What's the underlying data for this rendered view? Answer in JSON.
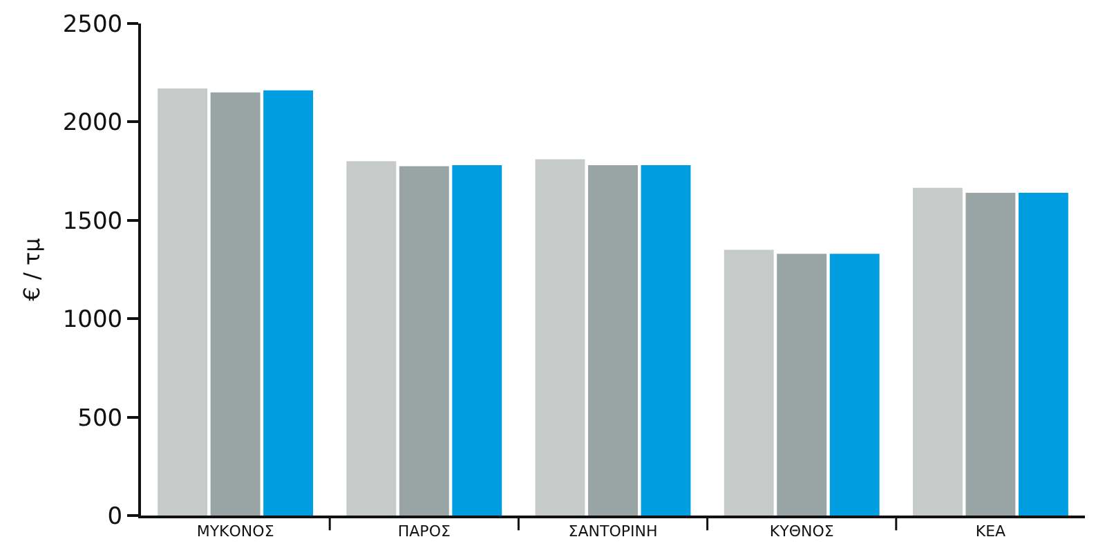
{
  "chart_data": {
    "type": "bar",
    "ylabel": "€ / τμ",
    "categories": [
      "ΜΥΚΟΝΟΣ",
      "ΠΑΡΟΣ",
      "ΣΑΝΤΟΡΙΝΗ",
      "ΚΥΘΝΟΣ",
      "ΚΕΑ"
    ],
    "series": [
      {
        "color": "#c6cbc9",
        "values": [
          2170,
          1800,
          1810,
          1350,
          1665
        ]
      },
      {
        "color": "#98a5a4",
        "values": [
          2150,
          1775,
          1780,
          1330,
          1640
        ]
      },
      {
        "color": "#009ee0",
        "values": [
          2160,
          1780,
          1780,
          1330,
          1640
        ]
      }
    ],
    "ylim": [
      0,
      2500
    ],
    "yticks": [
      0,
      500,
      1000,
      1500,
      2000,
      2500
    ]
  }
}
